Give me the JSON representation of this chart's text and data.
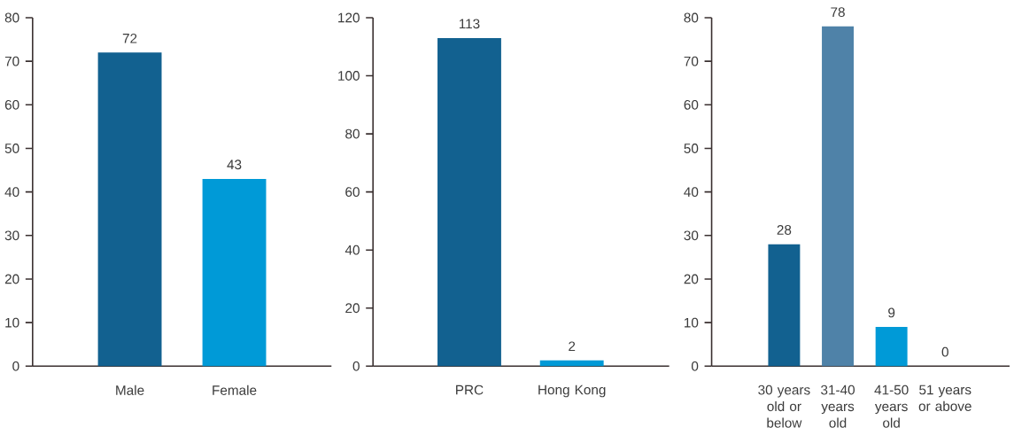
{
  "chart_data": [
    {
      "type": "bar",
      "categories": [
        "Male",
        "Female"
      ],
      "values": [
        72,
        43
      ],
      "colors": [
        "#126190",
        "#009ad7"
      ],
      "ylim": [
        0,
        80
      ],
      "yticks": [
        0,
        10,
        20,
        30,
        40,
        50,
        60,
        70,
        80
      ],
      "data_labels": true
    },
    {
      "type": "bar",
      "categories": [
        "PRC",
        "Hong Kong"
      ],
      "values": [
        113,
        2
      ],
      "colors": [
        "#126190",
        "#009ad7"
      ],
      "ylim": [
        0,
        120
      ],
      "yticks": [
        0,
        20,
        40,
        60,
        80,
        100,
        120
      ],
      "data_labels": true
    },
    {
      "type": "bar",
      "categories": [
        "30 years old or below",
        "31-40 years old",
        "41-50 years old",
        "51 years or above"
      ],
      "values": [
        28,
        78,
        9,
        0
      ],
      "colors": [
        "#126190",
        "#4f82a8",
        "#009ad7",
        "#7fa3c0"
      ],
      "ylim": [
        0,
        80
      ],
      "yticks": [
        0,
        10,
        20,
        30,
        40,
        50,
        60,
        70,
        80
      ],
      "data_labels": true
    }
  ]
}
